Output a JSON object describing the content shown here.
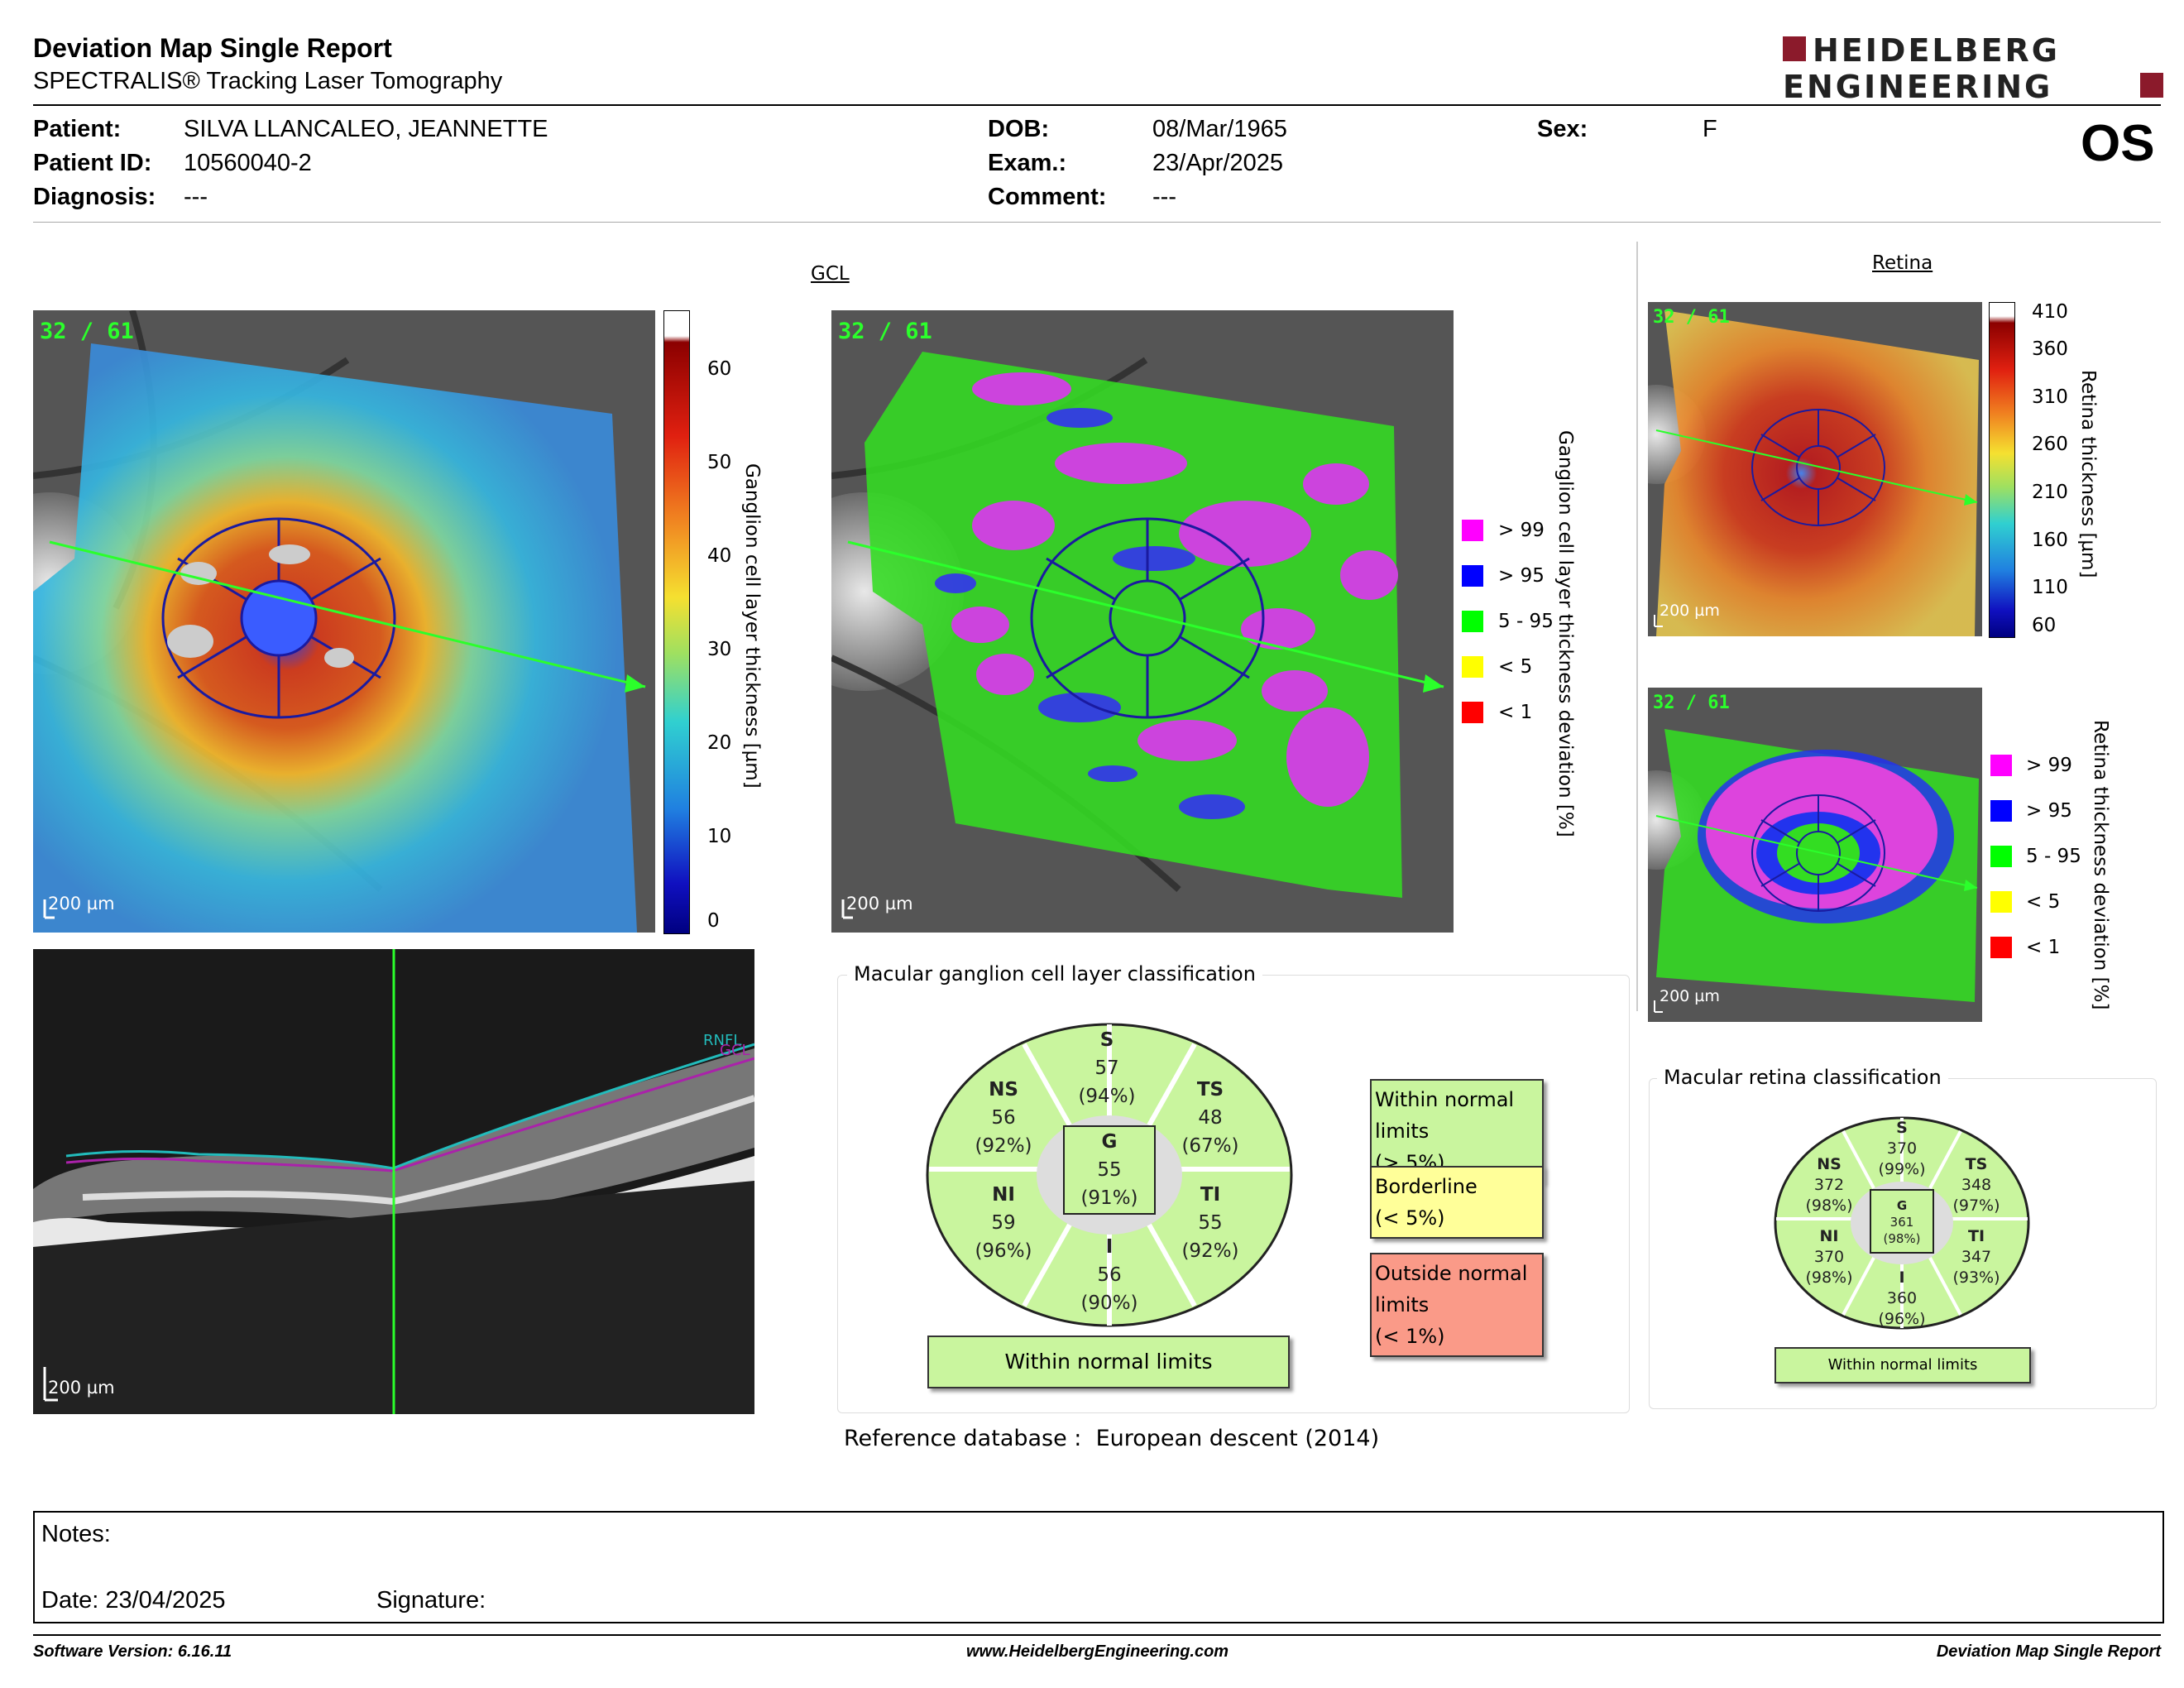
{
  "header": {
    "title": "Deviation Map Single Report",
    "subtitle": "SPECTRALIS® Tracking Laser Tomography",
    "logo_line1": "HEIDELBERG",
    "logo_line2": "ENGINEERING",
    "eye": "OS"
  },
  "patient": {
    "patient_label": "Patient:",
    "patient_value": "SILVA LLANCALEO, JEANNETTE",
    "id_label": "Patient ID:",
    "id_value": "10560040-2",
    "diagnosis_label": "Diagnosis:",
    "diagnosis_value": "---",
    "dob_label": "DOB:",
    "dob_value": "08/Mar/1965",
    "exam_label": "Exam.:",
    "exam_value": "23/Apr/2025",
    "comment_label": "Comment:",
    "comment_value": "---",
    "sex_label": "Sex:",
    "sex_value": "F"
  },
  "gcl": {
    "section_title": "GCL",
    "badge": "32 / 61",
    "scale": "200 µm",
    "thickness_axis_label": "Ganglion cell layer thickness [µm]",
    "thickness_ticks": [
      "60",
      "50",
      "40",
      "30",
      "20",
      "10",
      "0"
    ],
    "deviation_axis_label": "Ganglion cell layer thickness deviation [%]",
    "legend": [
      {
        "label": "> 99",
        "color": "#ff00ff"
      },
      {
        "label": "> 95",
        "color": "#0000ff"
      },
      {
        "label": "5 - 95",
        "color": "#00ff00"
      },
      {
        "label": "< 5",
        "color": "#ffff00"
      },
      {
        "label": "< 1",
        "color": "#ff0000"
      }
    ],
    "oct_layer_labels": [
      "RNFL",
      "GCL"
    ]
  },
  "retina": {
    "section_title": "Retina",
    "badge": "32 / 61",
    "scale": "200 µm",
    "thickness_axis_label": "Retina thickness [µm]",
    "thickness_ticks": [
      "410",
      "360",
      "310",
      "260",
      "210",
      "160",
      "110",
      "60"
    ],
    "deviation_axis_label": "Retina thickness deviation [%]",
    "legend": [
      {
        "label": "> 99",
        "color": "#ff00ff"
      },
      {
        "label": "> 95",
        "color": "#0000ff"
      },
      {
        "label": "5 - 95",
        "color": "#00ff00"
      },
      {
        "label": "< 5",
        "color": "#ffff00"
      },
      {
        "label": "< 1",
        "color": "#ff0000"
      }
    ]
  },
  "gcl_classification": {
    "title": "Macular ganglion cell layer classification",
    "sectors": {
      "S": {
        "name": "S",
        "value": "57",
        "pct": "(94%)"
      },
      "NS": {
        "name": "NS",
        "value": "56",
        "pct": "(92%)"
      },
      "TS": {
        "name": "TS",
        "value": "48",
        "pct": "(67%)"
      },
      "G": {
        "name": "G",
        "value": "55",
        "pct": "(91%)"
      },
      "NI": {
        "name": "NI",
        "value": "59",
        "pct": "(96%)"
      },
      "TI": {
        "name": "TI",
        "value": "55",
        "pct": "(92%)"
      },
      "I": {
        "name": "I",
        "value": "56",
        "pct": "(90%)"
      }
    },
    "result": "Within normal limits",
    "key": [
      {
        "line1": "Within normal limits",
        "line2": "(> 5%)",
        "color": "#c9f59e"
      },
      {
        "line1": "Borderline",
        "line2": "(< 5%)",
        "color": "#ffff99"
      },
      {
        "line1": "Outside normal limits",
        "line2": "(< 1%)",
        "color": "#fa9a88"
      }
    ],
    "reference_label": "Reference database :",
    "reference_value": "European descent (2014)"
  },
  "retina_classification": {
    "title": "Macular retina classification",
    "sectors": {
      "S": {
        "name": "S",
        "value": "370",
        "pct": "(99%)"
      },
      "NS": {
        "name": "NS",
        "value": "372",
        "pct": "(98%)"
      },
      "TS": {
        "name": "TS",
        "value": "348",
        "pct": "(97%)"
      },
      "G": {
        "name": "G",
        "value": "361",
        "pct": "(98%)"
      },
      "NI": {
        "name": "NI",
        "value": "370",
        "pct": "(98%)"
      },
      "TI": {
        "name": "TI",
        "value": "347",
        "pct": "(93%)"
      },
      "I": {
        "name": "I",
        "value": "360",
        "pct": "(96%)"
      }
    },
    "result": "Within normal limits"
  },
  "notes": {
    "notes_label": "Notes:",
    "date_label": "Date: 23/04/2025",
    "signature_label": "Signature:"
  },
  "footer": {
    "software": "Software Version: 6.16.11",
    "website": "www.HeidelbergEngineering.com",
    "report": "Deviation Map Single Report"
  }
}
